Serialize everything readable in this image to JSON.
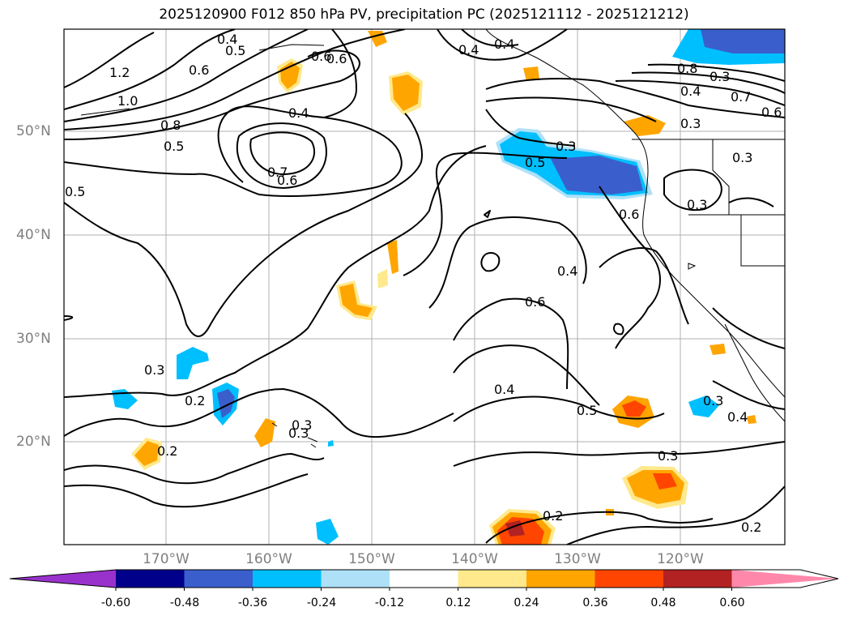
{
  "title": "2025120900 F012 850 hPa PV, precipitation PC (2025121112 - 2025121212)",
  "lat_labels": [
    "50°N",
    "40°N",
    "30°N",
    "20°N"
  ],
  "lon_labels": [
    "170°W",
    "160°W",
    "150°W",
    "140°W",
    "130°W",
    "120°W"
  ],
  "colorbar": {
    "colors": [
      "#9932cc",
      "#00008b",
      "#3a5fcd",
      "#00bfff",
      "#aee1f8",
      "#ffffff",
      "#ffe98c",
      "#ffa500",
      "#ff4500",
      "#b22222",
      "#ff88aa"
    ],
    "ticks": [
      "-0.60",
      "-0.48",
      "-0.36",
      "-0.24",
      "-0.12",
      "0.12",
      "0.24",
      "0.36",
      "0.48",
      "0.60"
    ]
  },
  "contour_labels": [
    "1.2",
    "1.0",
    "0.8",
    "0.6",
    "0.5",
    "0.4",
    "0.6",
    "0.4",
    "0.7",
    "0.6",
    "0.5",
    "0.4",
    "0.3",
    "0.5",
    "0.3",
    "0.6",
    "0.3",
    "0.4",
    "0.6",
    "0.4",
    "0.5",
    "0.3",
    "0.3",
    "0.2",
    "0.2",
    "0.3",
    "0.2",
    "0.3",
    "0.4",
    "0.2",
    "0.3",
    "0.8",
    "0.4",
    "0.3",
    "0.7",
    "0.6",
    "0.4",
    "0.5",
    "0.6",
    "0.3"
  ]
}
